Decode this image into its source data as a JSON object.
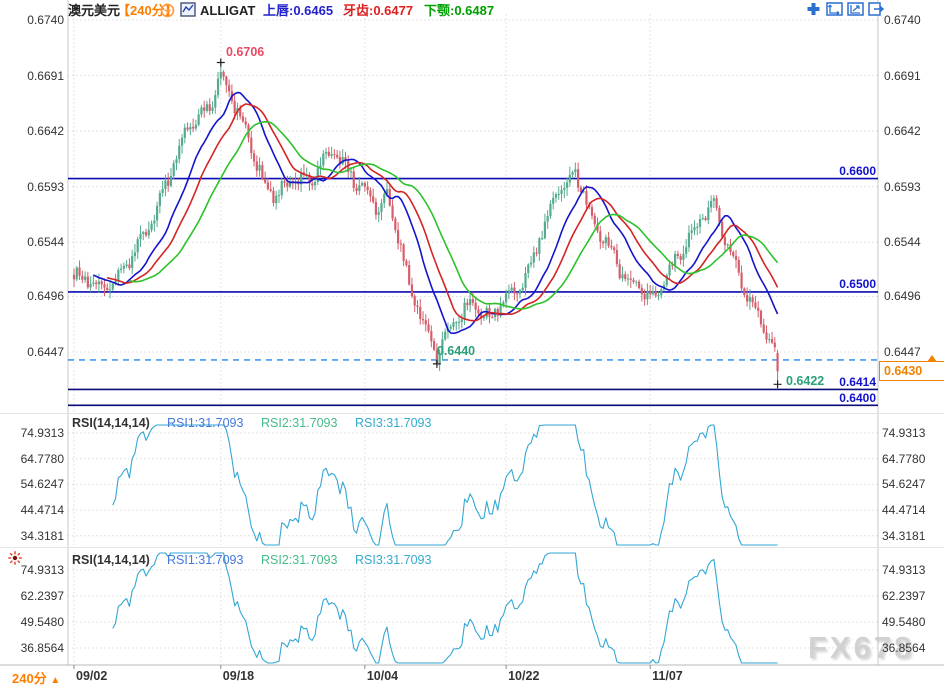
{
  "header": {
    "symbol": "澳元美元",
    "period": "【240分】",
    "indicator": "ALLIGAT",
    "lips": "上唇:0.6465",
    "teeth": "牙齿:0.6477",
    "jaw": "下颚:0.6487"
  },
  "toolbar": {
    "icons": [
      "move-icon",
      "axis-zoom-icon",
      "axis-scale-icon",
      "exit-icon"
    ]
  },
  "main_chart": {
    "y_labels": [
      "0.6740",
      "0.6691",
      "0.6642",
      "0.6593",
      "0.6544",
      "0.6496",
      "0.6447"
    ],
    "level_labels": {
      "r6600": "0.6600",
      "r6500": "0.6500",
      "r6414": "0.6414",
      "r6400": "0.6400",
      "current": "0.6430"
    },
    "annotations": {
      "high": "0.6706",
      "swing_low": "0.6440",
      "last_low": "0.6422"
    }
  },
  "rsi1": {
    "title": "RSI(14,14,14)",
    "v1": "RSI1:31.7093",
    "v2": "RSI2:31.7093",
    "v3": "RSI3:31.7093",
    "labels": [
      "74.9313",
      "64.7780",
      "54.6247",
      "44.4714",
      "34.3181"
    ]
  },
  "rsi2": {
    "title": "RSI(14,14,14)",
    "v1": "RSI1:31.7093",
    "v2": "RSI2:31.7093",
    "v3": "RSI3:31.7093",
    "labels": [
      "74.9313",
      "62.2397",
      "49.5480",
      "36.8564"
    ]
  },
  "bottom": {
    "period": "240分",
    "dates": [
      "09/02",
      "09/18",
      "10/04",
      "10/22",
      "11/07"
    ]
  },
  "watermark": "FX678",
  "colors": {
    "up": "#54ab8d",
    "down": "#d45f6b",
    "lips": "#1414cc",
    "teeth": "#d42424",
    "jaw": "#2cc22c",
    "rsi": "#33a7d4",
    "level_blue": "#0a0ab4",
    "level_dark": "#0a0a78",
    "dashed_blue": "#2288ee",
    "accent_orange": "#f08200",
    "annotation_red": "#ea4a62",
    "annotation_teal": "#2aa07a",
    "label_blue": "#1111cc",
    "grid": "#dcdcdc",
    "border": "#c8c8c8",
    "rsi1_val": "#4477dd",
    "rsi2_val": "#44bb88",
    "rsi3_val": "#33aacc"
  },
  "chart_data": {
    "type": "candlestick",
    "title": "澳元美元 (AUD/USD) 240分 with Alligator overlay and two RSI(14,14,14) sub-panels",
    "timeframe_minutes": 240,
    "ylim": [
      0.6395,
      0.6745
    ],
    "y_ticks": [
      0.674,
      0.6691,
      0.6642,
      0.6593,
      0.6544,
      0.6496,
      0.6447
    ],
    "x_tick_labels": [
      "09/02",
      "09/18",
      "10/04",
      "10/22",
      "11/07"
    ],
    "x_tick_bars": [
      0,
      53,
      105,
      156,
      208
    ],
    "bars_total": 255,
    "close_path": {
      "bars": [
        0,
        8,
        13,
        18,
        24,
        28,
        31,
        36,
        40,
        45,
        49,
        53,
        56,
        58,
        61,
        64,
        69,
        73,
        76,
        82,
        86,
        89,
        94,
        97,
        100,
        105,
        110,
        113,
        116,
        121,
        124,
        127,
        131,
        134,
        138,
        143,
        147,
        150,
        153,
        156,
        161,
        165,
        168,
        172,
        175,
        178,
        181,
        184,
        186,
        189,
        192,
        195,
        197,
        200,
        204,
        207,
        210,
        213,
        215,
        218,
        222,
        225,
        228,
        231,
        234,
        237,
        240,
        242,
        245,
        247,
        250,
        252,
        254
      ],
      "values": [
        0.6515,
        0.65,
        0.6505,
        0.6522,
        0.6548,
        0.656,
        0.6578,
        0.661,
        0.6642,
        0.6655,
        0.6668,
        0.6695,
        0.6678,
        0.6662,
        0.6645,
        0.6622,
        0.6594,
        0.6588,
        0.6596,
        0.6601,
        0.6596,
        0.661,
        0.6622,
        0.6615,
        0.6606,
        0.6592,
        0.6572,
        0.658,
        0.6558,
        0.6502,
        0.6488,
        0.6472,
        0.6448,
        0.6462,
        0.6472,
        0.6488,
        0.6478,
        0.6476,
        0.6488,
        0.6497,
        0.6507,
        0.6522,
        0.6546,
        0.6568,
        0.6588,
        0.6598,
        0.6608,
        0.6592,
        0.6576,
        0.6558,
        0.6546,
        0.6528,
        0.6516,
        0.6508,
        0.6504,
        0.65,
        0.6502,
        0.6512,
        0.6522,
        0.6532,
        0.6546,
        0.6556,
        0.6566,
        0.6576,
        0.6558,
        0.654,
        0.652,
        0.6506,
        0.6492,
        0.648,
        0.6462,
        0.6448,
        0.643
      ]
    },
    "marked_points": {
      "high": {
        "bar": 53,
        "price": 0.6706
      },
      "swing_low": {
        "bar": 131,
        "price": 0.644
      },
      "last_low": {
        "bar": 254,
        "price": 0.6422
      },
      "last_close": 0.643
    },
    "levels": [
      {
        "price": 0.66,
        "style": "solid"
      },
      {
        "price": 0.65,
        "style": "solid"
      },
      {
        "price": 0.644,
        "style": "dashed"
      },
      {
        "price": 0.6414,
        "style": "solid"
      },
      {
        "price": 0.64,
        "style": "solid"
      }
    ],
    "alligator": {
      "lips": {
        "period": 5,
        "shift": 3,
        "current": 0.6465
      },
      "teeth": {
        "period": 8,
        "shift": 5,
        "current": 0.6477
      },
      "jaw": {
        "period": 13,
        "shift": 8,
        "current": 0.6487
      }
    },
    "rsi_panels": [
      {
        "params": [
          14,
          14,
          14
        ],
        "current_values": [
          31.7093,
          31.7093,
          31.7093
        ],
        "y_ticks": [
          74.9313,
          64.778,
          54.6247,
          44.4714,
          34.3181
        ]
      },
      {
        "params": [
          14,
          14,
          14
        ],
        "current_values": [
          31.7093,
          31.7093,
          31.7093
        ],
        "y_ticks": [
          74.9313,
          62.2397,
          49.548,
          36.8564
        ]
      }
    ]
  }
}
